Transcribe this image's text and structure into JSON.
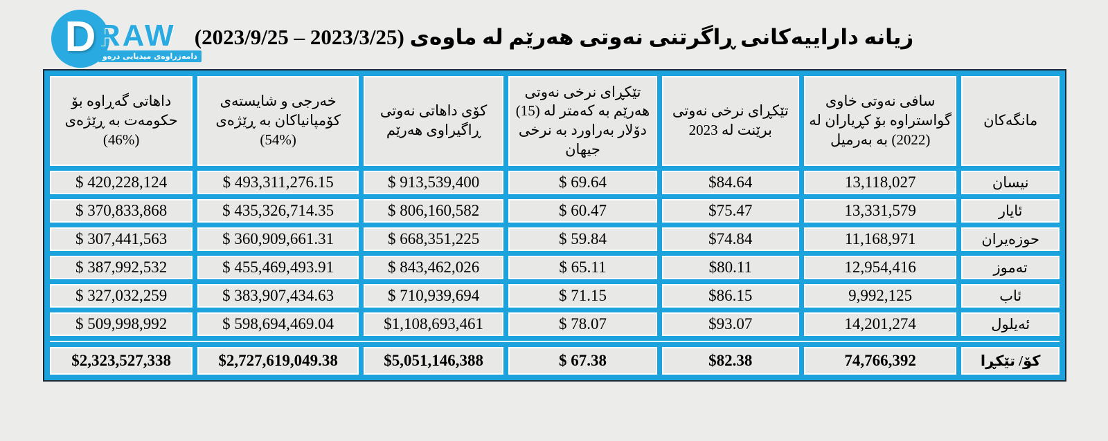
{
  "logo": {
    "letter": "D",
    "wordmark_suffix": "RAW",
    "tagline": "دامەزراوەی میدیایی درەو",
    "brand_color": "#29abe2"
  },
  "title": "زیانە داراییەکانی ڕاگرتنی نەوتی هەرێم لە ماوەی (2023/3/25 – 2023/9/25)",
  "colors": {
    "grid_blue": "#1ca3dd",
    "cell_background": "#e8e8e6",
    "page_background": "#ececea",
    "outer_border": "#1b2b36"
  },
  "table": {
    "headers": [
      {
        "key": "month",
        "label": "مانگەکان"
      },
      {
        "key": "net_crude",
        "label": "سافی نەوتی خاوی گواستراوە بۆ کڕیاران لە (2022) بە بەرمیل"
      },
      {
        "key": "brent_avg",
        "label": "تێکڕای نرخی نەوتی برێنت لە 2023"
      },
      {
        "key": "region_price",
        "label": "تێکڕای نرخی نەوتی هەرێم بە کەمتر لە (15) دۆلار بەراورد بە نرخی جیهان"
      },
      {
        "key": "total_revenue",
        "label": "کۆی داهاتی نەوتی ڕاگیراوی هەرێم"
      },
      {
        "key": "companies_share",
        "label": "خەرجی و شایستەی کۆمپانیاکان بە ڕێژەی (%54)"
      },
      {
        "key": "government_share",
        "label": "داهاتی گەڕاوە بۆ حکومەت بە ڕێژەی (%46)"
      }
    ],
    "rows": [
      {
        "month": "نیسان",
        "net_crude": "13,118,027",
        "brent_avg": "$84.64",
        "region_price": "$ 69.64",
        "total_revenue": "$ 913,539,400",
        "companies_share": "$ 493,311,276.15",
        "government_share": "$ 420,228,124"
      },
      {
        "month": "ئایار",
        "net_crude": "13,331,579",
        "brent_avg": "$75.47",
        "region_price": "$ 60.47",
        "total_revenue": "$ 806,160,582",
        "companies_share": "$ 435,326,714.35",
        "government_share": "$ 370,833,868"
      },
      {
        "month": "حوزەیران",
        "net_crude": "11,168,971",
        "brent_avg": "$74.84",
        "region_price": "$ 59.84",
        "total_revenue": "$ 668,351,225",
        "companies_share": "$ 360,909,661.31",
        "government_share": "$ 307,441,563"
      },
      {
        "month": "تەموز",
        "net_crude": "12,954,416",
        "brent_avg": "$80.11",
        "region_price": "$ 65.11",
        "total_revenue": "$ 843,462,026",
        "companies_share": "$ 455,469,493.91",
        "government_share": "$ 387,992,532"
      },
      {
        "month": "ئاب",
        "net_crude": "9,992,125",
        "brent_avg": "$86.15",
        "region_price": "$ 71.15",
        "total_revenue": "$ 710,939,694",
        "companies_share": "$ 383,907,434.63",
        "government_share": "$ 327,032,259"
      },
      {
        "month": "ئەیلول",
        "net_crude": "14,201,274",
        "brent_avg": "$93.07",
        "region_price": "$ 78.07",
        "total_revenue": "$1,108,693,461",
        "companies_share": "$ 598,694,469.04",
        "government_share": "$ 509,998,992"
      }
    ],
    "total_row": {
      "month": "کۆ/ تێکڕا",
      "net_crude": "74,766,392",
      "brent_avg": "$82.38",
      "region_price": "$ 67.38",
      "total_revenue": "$5,051,146,388",
      "companies_share": "$2,727,619,049.38",
      "government_share": "$2,323,527,338"
    }
  }
}
